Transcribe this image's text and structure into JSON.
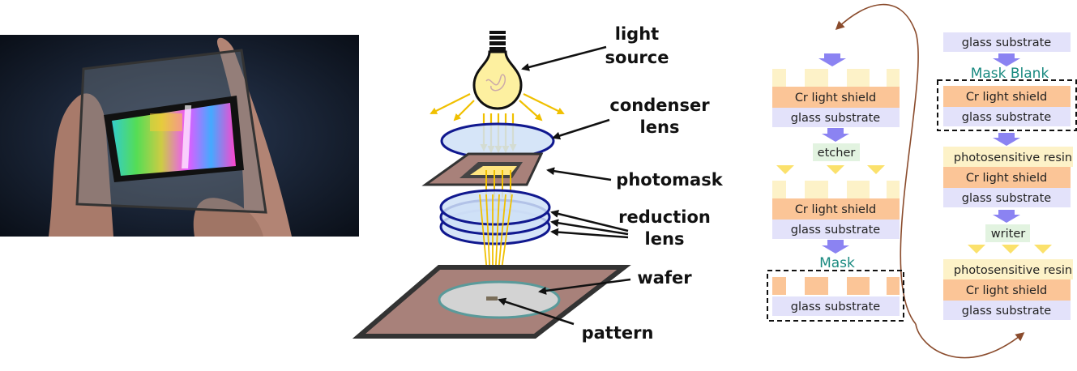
{
  "labels": {
    "light_source_1": "light",
    "light_source_2": "source",
    "condenser_1": "condenser",
    "condenser_2": "lens",
    "photomask": "photomask",
    "reduction_1": "reduction",
    "reduction_2": "lens",
    "wafer": "wafer",
    "pattern": "pattern"
  },
  "process_left": {
    "stage1": {
      "cr": "Cr light shield",
      "glass": "glass substrate"
    },
    "etcher": "etcher",
    "stage2": {
      "cr": "Cr light shield",
      "glass": "glass substrate"
    },
    "mask_title": "Mask",
    "mask": {
      "glass": "glass substrate"
    }
  },
  "process_right": {
    "top_glass": "glass substrate",
    "blank_title": "Mask Blank",
    "blank": {
      "cr": "Cr light shield",
      "glass": "glass substrate"
    },
    "stage3": {
      "resin": "photosensitive resin",
      "cr": "Cr light shield",
      "glass": "glass substrate"
    },
    "writer": "writer",
    "stage4": {
      "resin": "photosensitive resin",
      "cr": "Cr light shield",
      "glass": "glass substrate"
    }
  },
  "colors": {
    "cr": "#fbc597",
    "glass": "#e3e2fa",
    "resin": "#fdf2c8",
    "tool": "#e2f3e0",
    "arrow_blue": "#8b83f2",
    "arrow_yellow": "#fbe16c",
    "brown": "#8a4b2c",
    "lens_fill": "#cfe0f7",
    "lens_stroke": "#10188f",
    "mask_frame": "#a8817a",
    "wafer": "#d3d3d3"
  }
}
